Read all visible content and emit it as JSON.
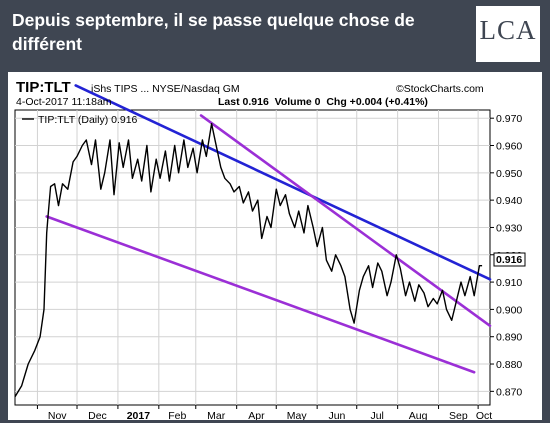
{
  "header": {
    "headline": "Depuis septembre, il se passe quelque chose de différent",
    "logo": "LCA"
  },
  "chart_data": {
    "type": "line",
    "symbol": "TIP:TLT",
    "symbol_desc": "iShs TIPS ... NYSE/Nasdaq GM",
    "credit": "©StockCharts.com",
    "date_stamp": "4-Oct-2017 11:18am",
    "quote": "Last 0.916  Volume 0  Chg +0.004 (+0.41%)",
    "legend": "TIP:TLT (Daily) 0.916",
    "last_value": "0.916",
    "x_tick_labels": [
      "Nov",
      "Dec",
      "2017",
      "Feb",
      "Mar",
      "Apr",
      "May",
      "Jun",
      "Jul",
      "Aug",
      "Sep",
      "Oct"
    ],
    "xlim": [
      "2016-10-15",
      "2017-10-10"
    ],
    "ylim": [
      0.865,
      0.973
    ],
    "y_tick_labels": [
      "0.970",
      "0.960",
      "0.950",
      "0.940",
      "0.930",
      "0.920",
      "0.910",
      "0.900",
      "0.890",
      "0.880",
      "0.870"
    ],
    "grid": true,
    "line_color": "#000000",
    "series": [
      {
        "x": [
          "2016-10-15",
          "2016-10-20",
          "2016-10-25",
          "2016-10-30",
          "2016-11-03",
          "2016-11-06",
          "2016-11-08",
          "2016-11-09",
          "2016-11-11",
          "2016-11-14",
          "2016-11-17",
          "2016-11-20",
          "2016-11-24",
          "2016-11-28",
          "2016-12-01",
          "2016-12-05",
          "2016-12-08",
          "2016-12-12",
          "2016-12-15",
          "2016-12-19",
          "2016-12-22",
          "2016-12-26",
          "2016-12-29",
          "2017-01-02",
          "2017-01-05",
          "2017-01-09",
          "2017-01-12",
          "2017-01-16",
          "2017-01-19",
          "2017-01-23",
          "2017-01-26",
          "2017-01-30",
          "2017-02-02",
          "2017-02-06",
          "2017-02-09",
          "2017-02-13",
          "2017-02-16",
          "2017-02-20",
          "2017-02-23",
          "2017-02-27",
          "2017-03-02",
          "2017-03-06",
          "2017-03-09",
          "2017-03-13",
          "2017-03-16",
          "2017-03-20",
          "2017-03-23",
          "2017-03-27",
          "2017-03-30",
          "2017-04-03",
          "2017-04-06",
          "2017-04-10",
          "2017-04-13",
          "2017-04-17",
          "2017-04-20",
          "2017-04-24",
          "2017-04-27",
          "2017-05-01",
          "2017-05-04",
          "2017-05-08",
          "2017-05-11",
          "2017-05-15",
          "2017-05-18",
          "2017-05-22",
          "2017-05-25",
          "2017-05-29",
          "2017-06-01",
          "2017-06-05",
          "2017-06-08",
          "2017-06-12",
          "2017-06-15",
          "2017-06-19",
          "2017-06-22",
          "2017-06-26",
          "2017-06-29",
          "2017-07-03",
          "2017-07-06",
          "2017-07-10",
          "2017-07-13",
          "2017-07-17",
          "2017-07-20",
          "2017-07-24",
          "2017-07-27",
          "2017-07-31",
          "2017-08-03",
          "2017-08-07",
          "2017-08-10",
          "2017-08-14",
          "2017-08-17",
          "2017-08-21",
          "2017-08-24",
          "2017-08-28",
          "2017-08-31",
          "2017-09-04",
          "2017-09-07",
          "2017-09-11",
          "2017-09-14",
          "2017-09-18",
          "2017-09-21",
          "2017-09-25",
          "2017-09-28",
          "2017-10-02",
          "2017-10-04"
        ],
        "y": [
          0.868,
          0.872,
          0.88,
          0.885,
          0.89,
          0.9,
          0.928,
          0.934,
          0.945,
          0.946,
          0.938,
          0.946,
          0.944,
          0.954,
          0.956,
          0.96,
          0.962,
          0.953,
          0.962,
          0.944,
          0.95,
          0.962,
          0.942,
          0.961,
          0.952,
          0.962,
          0.948,
          0.955,
          0.947,
          0.96,
          0.943,
          0.955,
          0.948,
          0.958,
          0.947,
          0.96,
          0.95,
          0.962,
          0.952,
          0.959,
          0.95,
          0.962,
          0.956,
          0.968,
          0.961,
          0.952,
          0.948,
          0.946,
          0.943,
          0.945,
          0.939,
          0.943,
          0.936,
          0.94,
          0.926,
          0.934,
          0.93,
          0.944,
          0.938,
          0.942,
          0.935,
          0.93,
          0.936,
          0.928,
          0.938,
          0.93,
          0.923,
          0.93,
          0.918,
          0.914,
          0.92,
          0.916,
          0.912,
          0.9,
          0.895,
          0.907,
          0.912,
          0.916,
          0.908,
          0.917,
          0.914,
          0.905,
          0.91,
          0.92,
          0.915,
          0.905,
          0.91,
          0.903,
          0.909,
          0.906,
          0.901,
          0.904,
          0.902,
          0.907,
          0.9,
          0.896,
          0.902,
          0.91,
          0.905,
          0.912,
          0.905,
          0.916,
          0.916
        ]
      }
    ],
    "trendlines": [
      {
        "color": "#2323d4",
        "x": [
          "2016-11-30",
          "2017-10-10"
        ],
        "y": [
          0.982,
          0.911
        ]
      },
      {
        "color": "#9b2fd6",
        "x": [
          "2017-03-05",
          "2017-10-10"
        ],
        "y": [
          0.971,
          0.894
        ]
      },
      {
        "color": "#9b2fd6",
        "x": [
          "2016-11-08",
          "2017-09-28"
        ],
        "y": [
          0.934,
          0.877
        ]
      }
    ]
  }
}
